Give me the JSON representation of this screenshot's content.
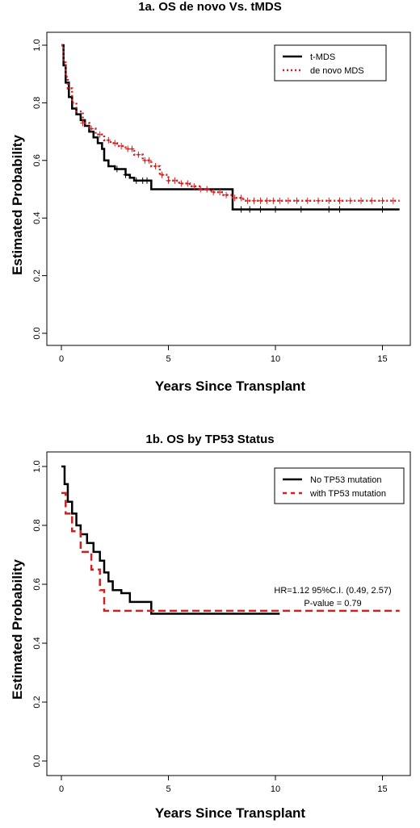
{
  "chart_data": [
    {
      "type": "line",
      "title": "1a. OS de novo Vs. tMDS",
      "xlabel": "Years Since Transplant",
      "ylabel": "Estimated Probability",
      "xlim": [
        0,
        16
      ],
      "ylim": [
        0,
        1
      ],
      "xticks": [
        "0",
        "5",
        "10",
        "15"
      ],
      "yticks": [
        "0.0",
        "0.2",
        "0.4",
        "0.6",
        "0.8",
        "1.0"
      ],
      "legend_position": "top-right",
      "series": [
        {
          "name": "t-MDS",
          "color": "#000000",
          "style": "solid",
          "x": [
            0,
            0.1,
            0.2,
            0.35,
            0.5,
            0.7,
            0.9,
            1.1,
            1.3,
            1.5,
            1.7,
            1.9,
            2.0,
            2.2,
            2.5,
            2.8,
            3.0,
            3.2,
            3.4,
            3.6,
            4.2,
            5.0,
            6.0,
            7.0,
            8.0,
            8.5,
            9.0,
            10.0,
            11.0,
            12.0,
            13.0,
            14.0,
            15.0,
            15.8
          ],
          "y": [
            1.0,
            0.93,
            0.87,
            0.82,
            0.78,
            0.76,
            0.74,
            0.72,
            0.7,
            0.68,
            0.66,
            0.64,
            0.6,
            0.58,
            0.57,
            0.57,
            0.55,
            0.54,
            0.53,
            0.53,
            0.5,
            0.5,
            0.5,
            0.5,
            0.43,
            0.43,
            0.43,
            0.43,
            0.43,
            0.43,
            0.43,
            0.43,
            0.43,
            0.43
          ],
          "censor_x": [
            2.6,
            3.0,
            3.5,
            3.8,
            4.0,
            8.4,
            8.8,
            9.3,
            10.0,
            11.2,
            12.5,
            13.0,
            15.0
          ]
        },
        {
          "name": "de novo MDS",
          "color": "#cc2222",
          "style": "dotted",
          "x": [
            0,
            0.1,
            0.2,
            0.3,
            0.5,
            0.7,
            1.0,
            1.3,
            1.6,
            2.0,
            2.3,
            2.6,
            3.0,
            3.4,
            3.8,
            4.2,
            4.6,
            5.0,
            5.5,
            6.0,
            6.5,
            7.0,
            7.5,
            8.0,
            8.5,
            9.0,
            10.0,
            11.0,
            12.0,
            13.0,
            14.0,
            15.0,
            15.8
          ],
          "y": [
            1.0,
            0.94,
            0.89,
            0.85,
            0.8,
            0.77,
            0.73,
            0.71,
            0.69,
            0.67,
            0.66,
            0.65,
            0.64,
            0.62,
            0.6,
            0.58,
            0.55,
            0.53,
            0.52,
            0.51,
            0.5,
            0.49,
            0.48,
            0.47,
            0.46,
            0.46,
            0.46,
            0.46,
            0.46,
            0.46,
            0.46,
            0.46,
            0.46
          ],
          "censor_x": [
            1.0,
            1.4,
            1.8,
            2.2,
            2.5,
            2.8,
            3.1,
            3.3,
            3.6,
            3.9,
            4.1,
            4.4,
            4.7,
            5.0,
            5.3,
            5.6,
            5.9,
            6.2,
            6.5,
            6.8,
            7.1,
            7.4,
            7.7,
            8.1,
            8.4,
            8.7,
            9.0,
            9.3,
            9.6,
            9.9,
            10.2,
            10.6,
            11.0,
            11.5,
            12.0,
            12.5,
            13.0,
            13.5,
            14.0,
            14.5,
            15.0,
            15.5
          ]
        }
      ]
    },
    {
      "type": "line",
      "title": "1b. OS by TP53 Status",
      "xlabel": "Years Since Transplant",
      "ylabel": "Estimated Probability",
      "xlim": [
        0,
        16
      ],
      "ylim": [
        0,
        1
      ],
      "xticks": [
        "0",
        "5",
        "10",
        "15"
      ],
      "yticks": [
        "0.0",
        "0.2",
        "0.4",
        "0.6",
        "0.8",
        "1.0"
      ],
      "legend_position": "top-right",
      "annotation": [
        "HR=1.12  95%C.I. (0.49, 2.57)",
        "P-value = 0.79"
      ],
      "series": [
        {
          "name": "No TP53 mutation",
          "color": "#000000",
          "style": "solid",
          "x": [
            0,
            0.15,
            0.3,
            0.5,
            0.7,
            0.9,
            1.2,
            1.5,
            1.8,
            2.0,
            2.2,
            2.4,
            2.8,
            3.2,
            3.6,
            4.2,
            5.0,
            7.0,
            10.2
          ],
          "y": [
            1.0,
            0.94,
            0.88,
            0.84,
            0.8,
            0.77,
            0.74,
            0.71,
            0.68,
            0.64,
            0.61,
            0.58,
            0.57,
            0.54,
            0.54,
            0.5,
            0.5,
            0.5,
            0.5
          ]
        },
        {
          "name": "with TP53 mutation",
          "color": "#cc2222",
          "style": "dashed",
          "x": [
            0,
            0.2,
            0.5,
            0.9,
            1.4,
            1.8,
            2.0,
            5.0,
            10.0,
            15.8
          ],
          "y": [
            0.91,
            0.84,
            0.78,
            0.71,
            0.65,
            0.58,
            0.51,
            0.51,
            0.51,
            0.51
          ]
        }
      ]
    }
  ]
}
